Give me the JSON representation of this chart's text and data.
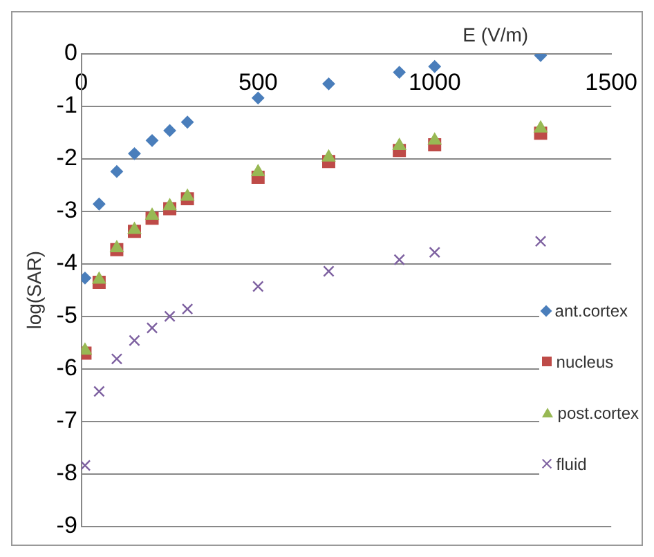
{
  "chart_data": {
    "type": "scatter",
    "xlabel": "E (V/m)",
    "ylabel": "log(SAR)",
    "xlim": [
      0,
      1500
    ],
    "xticks": [
      0,
      500,
      1000,
      1500
    ],
    "ylim": [
      -9,
      0
    ],
    "yticks": [
      0,
      -1,
      -2,
      -3,
      -4,
      -5,
      -6,
      -7,
      -8,
      -9
    ],
    "grid": "y",
    "legend": "bottom right",
    "x": [
      10,
      50,
      100,
      150,
      200,
      250,
      300,
      500,
      700,
      900,
      1000,
      1300
    ],
    "series": [
      {
        "name": "ant.cortex",
        "color": "#4a7ebb",
        "marker": "diamond",
        "values": [
          -4.27,
          -2.86,
          -2.24,
          -1.9,
          -1.65,
          -1.46,
          -1.3,
          -0.84,
          -0.57,
          -0.35,
          -0.24,
          -0.03
        ]
      },
      {
        "name": "nucleus",
        "color": "#be4b48",
        "marker": "square",
        "values": [
          -5.7,
          -4.35,
          -3.73,
          -3.38,
          -3.13,
          -2.95,
          -2.76,
          -2.35,
          -2.05,
          -1.84,
          -1.73,
          -1.51
        ]
      },
      {
        "name": "post.cortex",
        "color": "#98b954",
        "marker": "triangle",
        "values": [
          -5.65,
          -4.3,
          -3.7,
          -3.35,
          -3.08,
          -2.9,
          -2.72,
          -2.25,
          -1.97,
          -1.75,
          -1.65,
          -1.42
        ]
      },
      {
        "name": "fluid",
        "color": "#7d60a0",
        "marker": "cross",
        "values": [
          -7.84,
          -6.43,
          -5.81,
          -5.46,
          -5.22,
          -5.0,
          -4.86,
          -4.43,
          -4.14,
          -3.92,
          -3.78,
          -3.57
        ]
      }
    ]
  }
}
